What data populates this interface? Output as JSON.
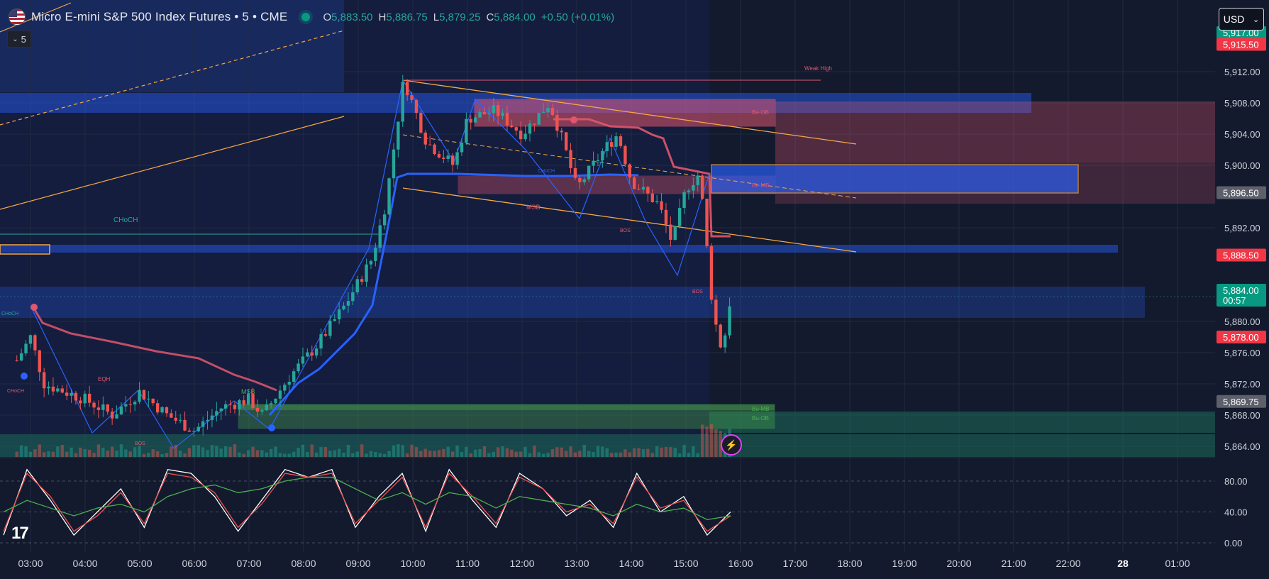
{
  "header": {
    "symbol_title": "Micro E-mini S&P 500 Index Futures • 5 • CME",
    "ohlc": [
      {
        "key": "O",
        "value": "5,883.50"
      },
      {
        "key": "H",
        "value": "5,886.75"
      },
      {
        "key": "L",
        "value": "5,879.25"
      },
      {
        "key": "C",
        "value": "5,884.00"
      }
    ],
    "change": "+0.50 (+0.01%)",
    "interval_label": "5",
    "currency": "USD"
  },
  "price_axis": {
    "labels": [
      "5,912.00",
      "5,908.00",
      "5,904.00",
      "5,900.00",
      "5,892.00",
      "5,880.00",
      "5,876.00",
      "5,872.00",
      "5,868.00",
      "5,864.00"
    ],
    "badges": [
      {
        "text": "5,917.00",
        "color": "#089981"
      },
      {
        "text": "5,915.50",
        "color": "#f23645"
      },
      {
        "text": "5,896.50",
        "color": "#5d606b"
      },
      {
        "text": "5,888.50",
        "color": "#f23645"
      },
      {
        "text": "5,884.00",
        "subtext": "00:57",
        "color": "#089981"
      },
      {
        "text": "5,878.00",
        "color": "#f23645"
      },
      {
        "text": "5,869.75",
        "color": "#5d606b"
      }
    ]
  },
  "oscillator_axis": {
    "labels": [
      "80.00",
      "40.00",
      "0.00"
    ]
  },
  "time_axis": {
    "labels": [
      "03:00",
      "04:00",
      "05:00",
      "06:00",
      "07:00",
      "08:00",
      "09:00",
      "10:00",
      "11:00",
      "12:00",
      "13:00",
      "14:00",
      "15:00",
      "16:00",
      "17:00",
      "18:00",
      "19:00",
      "20:00",
      "21:00",
      "22:00",
      "28",
      "01:00"
    ]
  },
  "annotations": {
    "weak_high": "Weak High",
    "be_ob": "Be-OB",
    "be_mb": "Be-MB",
    "bu_mb": "Bu-MB",
    "bu_ob": "Bu-OB",
    "choch_large": "CHoCH",
    "choch_small": "CHoCH",
    "choch_left": "CHoCH",
    "choch_top_left": "CHoCH",
    "msb_mid": "MSB",
    "msb_left": "MSB",
    "bos_1": "BOS",
    "bos_2": "BOS",
    "bos_3": "BOS",
    "eqh": "EQH"
  },
  "branding": {
    "logo_text": "17"
  },
  "colors": {
    "background": "#131a2e",
    "bull": "#26a69a",
    "bear": "#ef5350",
    "blue_zone": "#2962ff",
    "orange_line": "#f7a844",
    "green_zone": "#4caf50",
    "red_zone": "#e0566e"
  },
  "chart_data": [
    {
      "type": "candlestick",
      "title": "",
      "ylim": [
        5862,
        5918
      ],
      "x_label_positions": [
        "03:00",
        "04:00",
        "05:00",
        "06:00",
        "07:00",
        "08:00",
        "09:00",
        "10:00",
        "11:00",
        "12:00",
        "13:00",
        "14:00",
        "15:00",
        "16:00"
      ],
      "anchors": [
        {
          "t": "02:45",
          "price": 5875
        },
        {
          "t": "03:00",
          "price": 5878
        },
        {
          "t": "03:15",
          "price": 5872
        },
        {
          "t": "04:00",
          "price": 5870
        },
        {
          "t": "04:30",
          "price": 5868
        },
        {
          "t": "05:00",
          "price": 5871
        },
        {
          "t": "05:30",
          "price": 5868
        },
        {
          "t": "06:00",
          "price": 5866
        },
        {
          "t": "06:30",
          "price": 5869
        },
        {
          "t": "07:00",
          "price": 5870
        },
        {
          "t": "07:15",
          "price": 5868
        },
        {
          "t": "07:45",
          "price": 5873
        },
        {
          "t": "08:15",
          "price": 5877
        },
        {
          "t": "08:45",
          "price": 5882
        },
        {
          "t": "09:15",
          "price": 5888
        },
        {
          "t": "09:30",
          "price": 5895
        },
        {
          "t": "09:50",
          "price": 5911
        },
        {
          "t": "10:15",
          "price": 5903
        },
        {
          "t": "10:45",
          "price": 5900
        },
        {
          "t": "11:00",
          "price": 5906
        },
        {
          "t": "11:30",
          "price": 5907
        },
        {
          "t": "12:00",
          "price": 5904
        },
        {
          "t": "12:30",
          "price": 5908
        },
        {
          "t": "12:45",
          "price": 5903
        },
        {
          "t": "13:00",
          "price": 5897
        },
        {
          "t": "13:30",
          "price": 5902
        },
        {
          "t": "13:45",
          "price": 5904
        },
        {
          "t": "14:00",
          "price": 5898
        },
        {
          "t": "14:30",
          "price": 5895
        },
        {
          "t": "14:45",
          "price": 5890
        },
        {
          "t": "15:00",
          "price": 5897
        },
        {
          "t": "15:15",
          "price": 5899
        },
        {
          "t": "15:30",
          "price": 5881
        },
        {
          "t": "15:40",
          "price": 5876
        },
        {
          "t": "15:50",
          "price": 5884
        }
      ]
    },
    {
      "type": "line",
      "title": "",
      "ylim": [
        -10,
        105
      ],
      "y_ticks": [
        0,
        40,
        80
      ],
      "series": [
        {
          "color": "#ffffff",
          "values": [
            10,
            95,
            55,
            10,
            40,
            70,
            20,
            95,
            90,
            60,
            15,
            55,
            95,
            85,
            95,
            20,
            60,
            90,
            15,
            95,
            55,
            20,
            90,
            70,
            35,
            55,
            20,
            90,
            40,
            60,
            10,
            40
          ]
        },
        {
          "color": "#ef5350",
          "values": [
            15,
            90,
            60,
            15,
            35,
            65,
            25,
            90,
            85,
            65,
            20,
            50,
            90,
            85,
            90,
            25,
            55,
            85,
            20,
            90,
            60,
            25,
            85,
            70,
            40,
            50,
            25,
            85,
            45,
            55,
            15,
            35
          ]
        },
        {
          "color": "#4caf50",
          "values": [
            40,
            55,
            45,
            35,
            45,
            50,
            40,
            60,
            70,
            75,
            65,
            70,
            80,
            85,
            85,
            70,
            55,
            65,
            50,
            65,
            60,
            45,
            60,
            55,
            50,
            45,
            35,
            50,
            40,
            45,
            30,
            35
          ]
        }
      ]
    }
  ]
}
